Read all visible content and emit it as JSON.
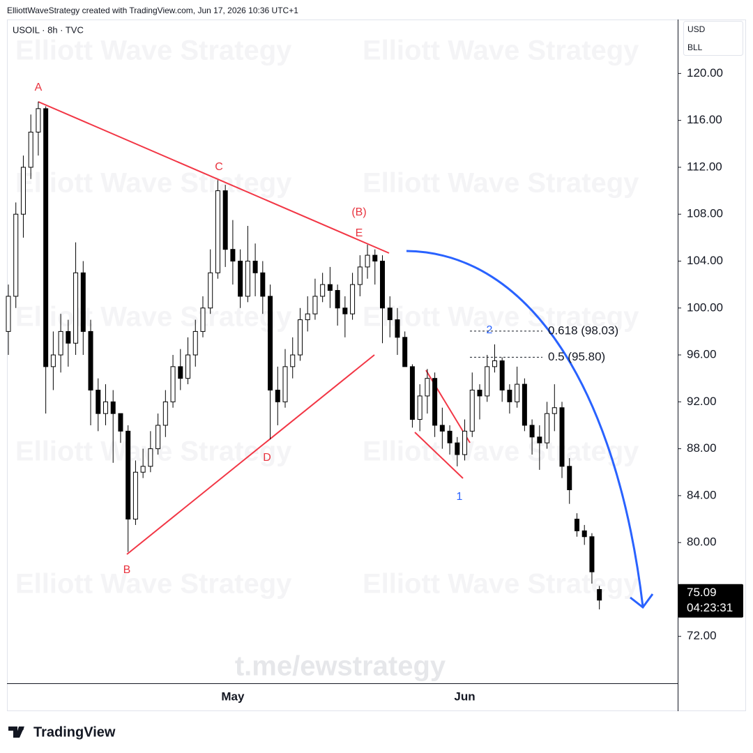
{
  "header": "ElliottWaveStrategy created with TradingView.com, Jun 17, 2026 10:36 UTC+1",
  "watermark": "Elliott Wave Strategy",
  "channel": "t.me/ewstrategy",
  "brand": "TradingView",
  "chart_data": {
    "type": "candlestick",
    "title": "USOIL · 8h · TVC",
    "currency": "USD",
    "unit": "BLL",
    "countdown": "04:23:31",
    "up_color": "#ffffff",
    "down_color": "#000000",
    "categories": [
      null,
      null,
      null,
      null,
      null,
      null,
      null,
      null,
      null,
      null,
      null,
      null,
      null,
      null,
      null,
      null,
      null,
      null,
      null,
      null,
      null,
      null,
      null,
      null,
      null,
      null,
      null,
      null,
      null,
      null,
      "May",
      null,
      null,
      null,
      null,
      null,
      null,
      null,
      null,
      null,
      null,
      null,
      null,
      null,
      null,
      null,
      null,
      null,
      null,
      null,
      null,
      null,
      null,
      null,
      null,
      null,
      null,
      null,
      null,
      null,
      null,
      "Jun",
      null,
      null,
      null,
      null,
      null,
      null,
      null,
      null,
      null,
      null,
      null,
      null,
      null,
      null,
      null,
      null,
      null,
      null
    ],
    "open": [
      98,
      101,
      108,
      112,
      115,
      117,
      95,
      96,
      98,
      97,
      103,
      98,
      93,
      91,
      92,
      91,
      89.5,
      82,
      86,
      86.5,
      88,
      90,
      92,
      95,
      94,
      96,
      98,
      100,
      103,
      110,
      105,
      104,
      101,
      104,
      103,
      101,
      93,
      92,
      95,
      96,
      99,
      99.5,
      101,
      102,
      101.5,
      100,
      99.5,
      102,
      103.5,
      104.5,
      104,
      100,
      99,
      97.5,
      95,
      90.5,
      92.5,
      94,
      90,
      89.5,
      88.5,
      87.5,
      89.5,
      93,
      92.5,
      95,
      95.5,
      93,
      92,
      93.5,
      90,
      89,
      88.5,
      91,
      91.5,
      86.5,
      82,
      81,
      80.5,
      76
    ],
    "high": [
      102,
      109,
      113,
      116.5,
      117.6,
      117.2,
      98,
      99.5,
      99,
      105.6,
      104,
      99,
      94,
      93.5,
      93,
      90.5,
      90,
      87,
      88,
      89.5,
      91,
      93,
      96,
      96.5,
      97.5,
      99,
      101,
      105,
      110.9,
      110.5,
      107.5,
      105,
      107,
      105.5,
      104,
      102,
      95,
      96.5,
      97.5,
      100,
      101,
      102.5,
      103,
      103.5,
      102,
      101,
      103,
      104.5,
      105.4,
      105,
      104.5,
      101,
      100,
      98,
      95.2,
      93.5,
      94.8,
      94.5,
      91.5,
      90,
      89,
      90.5,
      94.5,
      93.5,
      96,
      96.9,
      95.8,
      93.5,
      95,
      94,
      90.5,
      90,
      92,
      93.5,
      92,
      87.2,
      82.5,
      81.5,
      80.8,
      76.3
    ],
    "low": [
      96,
      100,
      106,
      111,
      113,
      91,
      93,
      94.5,
      95,
      96,
      96,
      90,
      89.5,
      90,
      86.8,
      88.5,
      79.2,
      81.5,
      85.5,
      86,
      87.5,
      89,
      91.5,
      93,
      93.5,
      95,
      97.5,
      99.5,
      102.5,
      103.5,
      102,
      100,
      100.5,
      101,
      99.5,
      88.8,
      90,
      91.5,
      94,
      95.5,
      98,
      99,
      100.5,
      100,
      98.5,
      97.5,
      99,
      101,
      102.5,
      102,
      97,
      97.5,
      96,
      95,
      89.8,
      89.5,
      91,
      89,
      88,
      87.5,
      86.5,
      87,
      89,
      90.5,
      92,
      94.5,
      92,
      91,
      91.5,
      89.5,
      87.5,
      86.2,
      88,
      89.5,
      85.5,
      83.3,
      80.5,
      79.8,
      76.5,
      74.3
    ],
    "close": [
      101,
      108,
      112,
      115,
      117,
      95,
      96,
      98,
      97,
      103,
      98,
      93,
      91,
      92,
      91,
      89.5,
      82,
      86,
      86.5,
      88,
      90,
      92,
      95,
      94,
      96,
      98,
      100,
      103,
      110,
      105,
      104,
      101,
      104,
      103,
      101,
      93,
      92,
      95,
      96,
      99,
      99.5,
      101,
      102,
      101.5,
      100,
      99.5,
      102,
      103.5,
      104.5,
      104,
      100,
      99,
      97.5,
      95,
      90.5,
      92.5,
      94,
      90,
      89.5,
      88.5,
      87.5,
      89.5,
      93,
      92.5,
      95,
      95.5,
      93,
      92,
      93.5,
      90,
      89,
      88.5,
      91,
      91.5,
      86.5,
      84.5,
      81,
      80.5,
      77.5,
      75.09
    ],
    "ylim": [
      68.0,
      124.6
    ],
    "yticks": [
      {
        "value": 72,
        "label": "72.00"
      },
      {
        "value": 76,
        "label": "76.00"
      },
      {
        "value": 80,
        "label": "80.00"
      },
      {
        "value": 84,
        "label": "84.00"
      },
      {
        "value": 88,
        "label": "88.00"
      },
      {
        "value": 92,
        "label": "92.00"
      },
      {
        "value": 96,
        "label": "96.00"
      },
      {
        "value": 100,
        "label": "100.00"
      },
      {
        "value": 104,
        "label": "104.00"
      },
      {
        "value": 108,
        "label": "108.00"
      },
      {
        "value": 112,
        "label": "112.00"
      },
      {
        "value": 116,
        "label": "116.00"
      },
      {
        "value": 120,
        "label": "120.00"
      }
    ],
    "fib_levels": [
      {
        "value": 98.03,
        "label": "0.618 (98.03)"
      },
      {
        "value": 95.8,
        "label": "0.5 (95.80)"
      }
    ],
    "annotations": [
      "A",
      "B",
      "C",
      "D",
      "E",
      "(B)",
      "1",
      "2"
    ]
  }
}
